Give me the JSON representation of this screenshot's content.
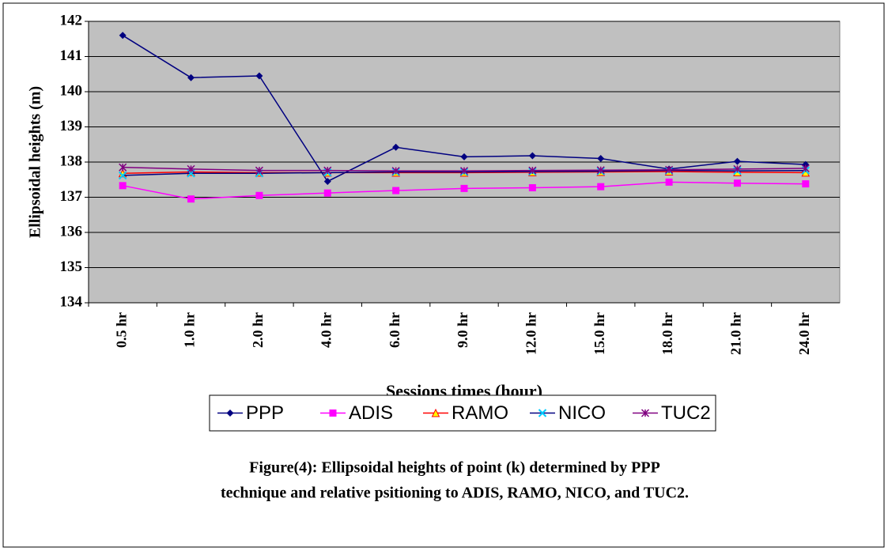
{
  "chart_data": {
    "type": "line",
    "y_label": "Ellipsoidal heights (m)",
    "x_label": "Sessions times (hour)",
    "caption": [
      "Figure(4):  Ellipsoidal heights of point (k) determined by PPP",
      "technique and relative psitioning to ADIS, RAMO, NICO, and TUC2."
    ],
    "categories": [
      "0.5 hr",
      "1.0 hr",
      "2.0 hr",
      "4.0 hr",
      "6.0 hr",
      "9.0 hr",
      "12.0 hr",
      "15.0 hr",
      "18.0 hr",
      "21.0 hr",
      "24.0 hr"
    ],
    "series": [
      {
        "name": "PPP",
        "color": "#000080",
        "marker": "diamond",
        "values": [
          141.6,
          140.4,
          140.45,
          137.45,
          138.42,
          138.15,
          138.18,
          138.1,
          137.8,
          138.02,
          137.93
        ]
      },
      {
        "name": "ADIS",
        "color": "#ff00ff",
        "marker": "square",
        "values": [
          137.33,
          136.95,
          137.05,
          137.12,
          137.19,
          137.25,
          137.27,
          137.3,
          137.43,
          137.4,
          137.38
        ]
      },
      {
        "name": "RAMO",
        "color": "#ff0000",
        "marker": "triangle",
        "values": [
          137.68,
          137.72,
          137.7,
          137.7,
          137.7,
          137.7,
          137.71,
          137.72,
          137.73,
          137.71,
          137.7
        ]
      },
      {
        "name": "NICO",
        "color": "#000080",
        "marker": "x",
        "values": [
          137.62,
          137.68,
          137.68,
          137.7,
          137.72,
          137.72,
          137.73,
          137.74,
          137.76,
          137.75,
          137.76
        ]
      },
      {
        "name": "TUC2",
        "color": "#800080",
        "marker": "star",
        "values": [
          137.85,
          137.8,
          137.76,
          137.76,
          137.75,
          137.75,
          137.76,
          137.77,
          137.78,
          137.8,
          137.82
        ]
      }
    ],
    "ylim": [
      134,
      142
    ],
    "yticks": [
      134,
      135,
      136,
      137,
      138,
      139,
      140,
      141,
      142
    ],
    "grid": true
  }
}
